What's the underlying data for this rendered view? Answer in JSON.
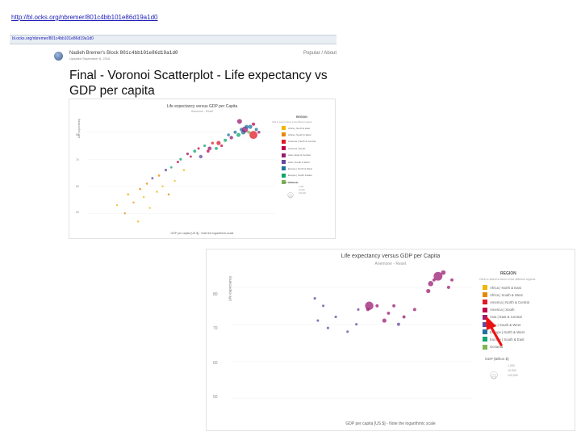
{
  "slide": {
    "url": "http://bl.ocks.org/nbremer/801c4bb101e86d19a1d0",
    "address_bar": "bl.ocks.org/nbremer/801c4bb101e86d19a1d0",
    "block_author": "Nadieh Bremer's Block",
    "block_hash": "801c4bb101e86d19a1d0",
    "block_date": "Updated September 8, 2016",
    "popular_label": "Popular / About",
    "title": "Final - Voronoi Scatterplot - Life expectancy vs GDP per capita"
  },
  "chart_data": [
    {
      "type": "scatter",
      "title": "Life expectancy versus GDP per Capita",
      "subtitle": "Anemone - Reset",
      "xlabel": "GDP per capita [US $] - Note the logarithmic scale",
      "ylabel": "Life expectancy",
      "y_ticks": [
        "80",
        "70",
        "60",
        "50"
      ],
      "legend_title": "REGION",
      "legend_subtitle": "Click to select a focus in the different regions",
      "regions": [
        {
          "name": "Africa | North & East",
          "color": "#EFB605"
        },
        {
          "name": "Africa | South & West",
          "color": "#E58903"
        },
        {
          "name": "America | North & Central",
          "color": "#E01A25"
        },
        {
          "name": "America | South",
          "color": "#C20049"
        },
        {
          "name": "Asia | East & Central",
          "color": "#991C71"
        },
        {
          "name": "Asia | South & West",
          "color": "#66489F"
        },
        {
          "name": "Europe | North & West",
          "color": "#2074A0"
        },
        {
          "name": "Europe | South & East",
          "color": "#10A66E"
        },
        {
          "name": "Oceania",
          "color": "#7EB852"
        }
      ],
      "gdp_legend_title": "GDP (Billion $)",
      "gdp_legend_items": [
        "1,000",
        "10,000",
        "100,000"
      ],
      "points": [
        {
          "x": 300,
          "y": 53,
          "r": 1.2,
          "c": "#EFB605"
        },
        {
          "x": 400,
          "y": 50,
          "r": 1.2,
          "c": "#E58903"
        },
        {
          "x": 450,
          "y": 57,
          "r": 1.4,
          "c": "#EFB605"
        },
        {
          "x": 550,
          "y": 54,
          "r": 1.2,
          "c": "#E58903"
        },
        {
          "x": 650,
          "y": 47,
          "r": 1.3,
          "c": "#EFB605"
        },
        {
          "x": 700,
          "y": 59,
          "r": 1.4,
          "c": "#E58903"
        },
        {
          "x": 800,
          "y": 56,
          "r": 1.2,
          "c": "#EFB605"
        },
        {
          "x": 900,
          "y": 61,
          "r": 1.3,
          "c": "#E58903"
        },
        {
          "x": 1000,
          "y": 52,
          "r": 1.2,
          "c": "#EFB605"
        },
        {
          "x": 1100,
          "y": 63,
          "r": 1.5,
          "c": "#66489F"
        },
        {
          "x": 1300,
          "y": 58,
          "r": 1.3,
          "c": "#EFB605"
        },
        {
          "x": 1400,
          "y": 64,
          "r": 1.4,
          "c": "#E58903"
        },
        {
          "x": 1600,
          "y": 60,
          "r": 1.2,
          "c": "#EFB605"
        },
        {
          "x": 1800,
          "y": 66,
          "r": 1.6,
          "c": "#66489F"
        },
        {
          "x": 2000,
          "y": 57,
          "r": 1.3,
          "c": "#E58903"
        },
        {
          "x": 2200,
          "y": 67,
          "r": 1.4,
          "c": "#10A66E"
        },
        {
          "x": 2500,
          "y": 62,
          "r": 1.2,
          "c": "#EFB605"
        },
        {
          "x": 2800,
          "y": 69,
          "r": 1.5,
          "c": "#C20049"
        },
        {
          "x": 3100,
          "y": 70,
          "r": 1.6,
          "c": "#10A66E"
        },
        {
          "x": 3500,
          "y": 66,
          "r": 1.3,
          "c": "#EFB605"
        },
        {
          "x": 4000,
          "y": 72,
          "r": 1.7,
          "c": "#991C71"
        },
        {
          "x": 4500,
          "y": 71,
          "r": 1.4,
          "c": "#C20049"
        },
        {
          "x": 5200,
          "y": 73,
          "r": 1.9,
          "c": "#10A66E"
        },
        {
          "x": 6000,
          "y": 74,
          "r": 1.5,
          "c": "#C20049"
        },
        {
          "x": 6500,
          "y": 71,
          "r": 2.2,
          "c": "#66489F"
        },
        {
          "x": 7500,
          "y": 75,
          "r": 1.6,
          "c": "#10A66E"
        },
        {
          "x": 8500,
          "y": 73,
          "r": 1.8,
          "c": "#C20049"
        },
        {
          "x": 9000,
          "y": 74,
          "r": 2.4,
          "c": "#991C71"
        },
        {
          "x": 10000,
          "y": 76,
          "r": 1.7,
          "c": "#E01A25"
        },
        {
          "x": 11500,
          "y": 74,
          "r": 1.9,
          "c": "#10A66E"
        },
        {
          "x": 12500,
          "y": 76,
          "r": 2.6,
          "c": "#E01A25"
        },
        {
          "x": 14000,
          "y": 75,
          "r": 1.6,
          "c": "#C20049"
        },
        {
          "x": 16000,
          "y": 77,
          "r": 2.0,
          "c": "#10A66E"
        },
        {
          "x": 18000,
          "y": 79,
          "r": 1.8,
          "c": "#2074A0"
        },
        {
          "x": 20000,
          "y": 78,
          "r": 2.2,
          "c": "#991C71"
        },
        {
          "x": 23000,
          "y": 80,
          "r": 2.0,
          "c": "#2074A0"
        },
        {
          "x": 26000,
          "y": 79,
          "r": 2.5,
          "c": "#10A66E"
        },
        {
          "x": 29000,
          "y": 81,
          "r": 2.2,
          "c": "#2074A0"
        },
        {
          "x": 31000,
          "y": 80,
          "r": 2.8,
          "c": "#2074A0"
        },
        {
          "x": 33000,
          "y": 81,
          "r": 3.8,
          "c": "#991C71"
        },
        {
          "x": 35000,
          "y": 82,
          "r": 2.4,
          "c": "#2074A0"
        },
        {
          "x": 38000,
          "y": 80,
          "r": 2.0,
          "c": "#7EB852"
        },
        {
          "x": 40000,
          "y": 82,
          "r": 2.6,
          "c": "#2074A0"
        },
        {
          "x": 45000,
          "y": 79,
          "r": 5.0,
          "c": "#E01A25"
        },
        {
          "x": 50000,
          "y": 81,
          "r": 2.0,
          "c": "#2074A0"
        },
        {
          "x": 55000,
          "y": 80,
          "r": 1.8,
          "c": "#991C71"
        },
        {
          "x": 27000,
          "y": 84,
          "r": 3.0,
          "c": "#991C71"
        },
        {
          "x": 45000,
          "y": 83,
          "r": 2.0,
          "c": "#C20049"
        }
      ]
    },
    {
      "type": "scatter",
      "title": "Life expectancy versus GDP per Capita",
      "subtitle": "Anemone - Reset",
      "xlabel": "GDP per capita [US $] - Note the logarithmic scale",
      "ylabel": "Life expectancy",
      "y_ticks": [
        "80",
        "70",
        "60",
        "50"
      ],
      "legend_title": "REGION",
      "legend_subtitle": "Click to select a focus in the different regions",
      "highlighted_region": "Asia | East & Central",
      "regions": [
        {
          "name": "Africa | North & East",
          "color": "#EFB605"
        },
        {
          "name": "Africa | South & West",
          "color": "#E58903"
        },
        {
          "name": "America | North & Central",
          "color": "#E01A25"
        },
        {
          "name": "America | South",
          "color": "#C20049"
        },
        {
          "name": "Asia | East & Central",
          "color": "#991C71"
        },
        {
          "name": "Asia | South & West",
          "color": "#66489F"
        },
        {
          "name": "Europe | North & West",
          "color": "#2074A0"
        },
        {
          "name": "Europe | South & East",
          "color": "#10A66E"
        },
        {
          "name": "Oceania",
          "color": "#7EB852"
        }
      ],
      "gdp_legend_title": "GDP (Billion $)",
      "gdp_legend_items": [
        "1,000",
        "10,000",
        "100,000"
      ],
      "points": [
        {
          "x": 1100,
          "y": 77,
          "r": 1.2,
          "c": "#66489F"
        },
        {
          "x": 1200,
          "y": 71,
          "r": 1.2,
          "c": "#66489F"
        },
        {
          "x": 1400,
          "y": 75,
          "r": 1.2,
          "c": "#66489F"
        },
        {
          "x": 1600,
          "y": 69,
          "r": 1.2,
          "c": "#66489F"
        },
        {
          "x": 2000,
          "y": 72,
          "r": 1.2,
          "c": "#66489F"
        },
        {
          "x": 2800,
          "y": 68,
          "r": 1.2,
          "c": "#66489F"
        },
        {
          "x": 3600,
          "y": 70,
          "r": 1.2,
          "c": "#66489F"
        },
        {
          "x": 3800,
          "y": 74,
          "r": 1.2,
          "c": "#66489F"
        },
        {
          "x": 5000,
          "y": 74,
          "r": 1.5,
          "c": "#991C71"
        },
        {
          "x": 5200,
          "y": 75,
          "r": 4.0,
          "c": "#991C71"
        },
        {
          "x": 6500,
          "y": 75,
          "r": 1.5,
          "c": "#991C71"
        },
        {
          "x": 8000,
          "y": 71,
          "r": 2.0,
          "c": "#991C71"
        },
        {
          "x": 9000,
          "y": 73,
          "r": 1.5,
          "c": "#991C71"
        },
        {
          "x": 10500,
          "y": 75,
          "r": 1.5,
          "c": "#991C71"
        },
        {
          "x": 12000,
          "y": 70,
          "r": 1.5,
          "c": "#66489F"
        },
        {
          "x": 14000,
          "y": 72,
          "r": 1.5,
          "c": "#991C71"
        },
        {
          "x": 19000,
          "y": 74,
          "r": 1.5,
          "c": "#991C71"
        },
        {
          "x": 30000,
          "y": 81,
          "r": 2.5,
          "c": "#991C71"
        },
        {
          "x": 33000,
          "y": 82,
          "r": 1.5,
          "c": "#991C71"
        },
        {
          "x": 37000,
          "y": 83,
          "r": 4.2,
          "c": "#991C71"
        },
        {
          "x": 50000,
          "y": 80,
          "r": 1.5,
          "c": "#991C71"
        },
        {
          "x": 55000,
          "y": 82,
          "r": 1.5,
          "c": "#991C71"
        },
        {
          "x": 28000,
          "y": 79,
          "r": 2.0,
          "c": "#991C71"
        },
        {
          "x": 43000,
          "y": 84,
          "r": 2.2,
          "c": "#991C71"
        }
      ]
    }
  ]
}
